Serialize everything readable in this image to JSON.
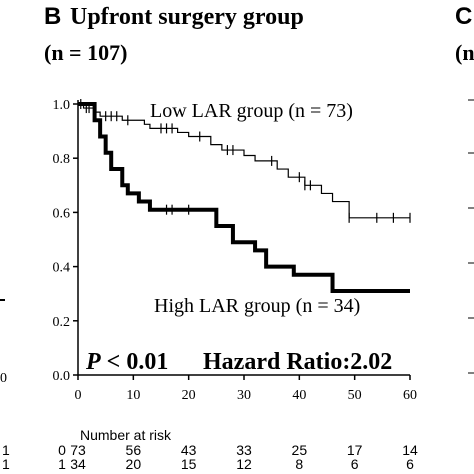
{
  "panel": {
    "letter": "B",
    "title": "Upfront surgery group",
    "n_text": "(n = 107)",
    "next_letter": "C",
    "next_n_fragment": "(n",
    "prev_x_fragment": "0"
  },
  "annotations": {
    "low_label": "Low LAR group (n = 73)",
    "high_label": "High LAR group (n = 34)",
    "p_symbol": "P",
    "p_rest": " < 0.01",
    "hazard_ratio": "Hazard Ratio:2.02"
  },
  "chart_data": {
    "type": "line",
    "title": "Upfront surgery group",
    "subtitle": "(n = 107)",
    "xlim": [
      0,
      60
    ],
    "ylim": [
      0,
      1.0
    ],
    "x_ticks": [
      "0",
      "10",
      "20",
      "30",
      "40",
      "50",
      "60"
    ],
    "y_ticks": [
      "0.0",
      "0.2",
      "0.4",
      "0.6",
      "0.8",
      "1.0"
    ],
    "grid": false,
    "series": [
      {
        "name": "Low LAR group (n = 73)",
        "color": "#000000",
        "line_style": "thin",
        "x": [
          0,
          1,
          3,
          4,
          8,
          12,
          13,
          18,
          20,
          24,
          26,
          30,
          32,
          36,
          38,
          41,
          44,
          46,
          49,
          60
        ],
        "y": [
          1.0,
          0.985,
          0.97,
          0.955,
          0.94,
          0.925,
          0.91,
          0.895,
          0.88,
          0.85,
          0.83,
          0.81,
          0.79,
          0.76,
          0.73,
          0.7,
          0.67,
          0.64,
          0.58,
          0.58
        ],
        "censor_x": [
          0.5,
          1.5,
          2,
          5,
          6,
          7,
          9,
          15,
          16,
          17,
          22,
          27,
          28,
          35,
          40,
          41,
          42,
          49,
          54,
          57,
          60
        ],
        "censor_y": [
          1.0,
          0.985,
          0.985,
          0.955,
          0.955,
          0.955,
          0.94,
          0.91,
          0.91,
          0.91,
          0.88,
          0.83,
          0.83,
          0.79,
          0.73,
          0.7,
          0.7,
          0.58,
          0.58,
          0.58,
          0.58
        ]
      },
      {
        "name": "High LAR group (n = 34)",
        "color": "#000000",
        "line_style": "thick",
        "x": [
          0,
          3,
          4,
          5,
          6,
          8,
          9,
          11,
          13,
          25,
          28,
          32,
          34,
          39,
          46,
          60
        ],
        "y": [
          1.0,
          0.94,
          0.88,
          0.82,
          0.76,
          0.7,
          0.67,
          0.64,
          0.61,
          0.55,
          0.49,
          0.46,
          0.4,
          0.37,
          0.31,
          0.31
        ],
        "censor_x": [
          16,
          17,
          20
        ],
        "censor_y": [
          0.61,
          0.61,
          0.61
        ]
      }
    ],
    "risk_table": {
      "title": "Number at risk",
      "rows": [
        {
          "label": "0",
          "values": [
            "73",
            "56",
            "43",
            "33",
            "25",
            "17",
            "14"
          ]
        },
        {
          "label": "1",
          "values": [
            "34",
            "20",
            "15",
            "12",
            "8",
            "6",
            "6"
          ]
        }
      ],
      "prev_panel_fragments": [
        "1",
        "1"
      ]
    }
  }
}
